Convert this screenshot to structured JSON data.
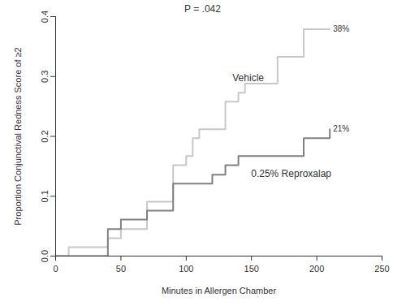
{
  "chart_data": {
    "type": "line",
    "line_style": "step",
    "title": "P = .042",
    "x_label": "Minutes in Allergen Chamber",
    "y_label": "Proportion Conjunctival Redness Score of ≥2",
    "xlim": [
      0,
      250
    ],
    "xticks": [
      0,
      50,
      100,
      150,
      200,
      250
    ],
    "ylim": [
      0,
      0.4
    ],
    "yticks": [
      {
        "value": 0,
        "label": "0.0"
      },
      {
        "value": 0.1,
        "label": "0.1"
      },
      {
        "value": 0.2,
        "label": "0.2"
      },
      {
        "value": 0.3,
        "label": "0.3"
      },
      {
        "value": 0.4,
        "label": "0.4"
      }
    ],
    "series": [
      {
        "name": "Vehicle",
        "color": "#c8c8c8",
        "x": [
          0,
          10,
          40,
          50,
          70,
          90,
          100,
          105,
          110,
          130,
          140,
          145,
          170,
          190,
          210
        ],
        "values": [
          0,
          0.015,
          0.03,
          0.045,
          0.091,
          0.152,
          0.167,
          0.197,
          0.212,
          0.258,
          0.273,
          0.288,
          0.333,
          0.379,
          0.379
        ],
        "value_labels": [
          null,
          null,
          null,
          null,
          null,
          null,
          null,
          null,
          null,
          null,
          null,
          null,
          null,
          null,
          "38%"
        ]
      },
      {
        "name": "0.25% Reproxalap",
        "color": "#808080",
        "x": [
          0,
          40,
          50,
          70,
          90,
          120,
          130,
          140,
          190,
          210
        ],
        "values": [
          0,
          0.045,
          0.061,
          0.076,
          0.121,
          0.136,
          0.152,
          0.167,
          0.197,
          0.212
        ],
        "value_labels": [
          null,
          null,
          null,
          null,
          null,
          null,
          null,
          null,
          null,
          "21%"
        ]
      }
    ]
  }
}
